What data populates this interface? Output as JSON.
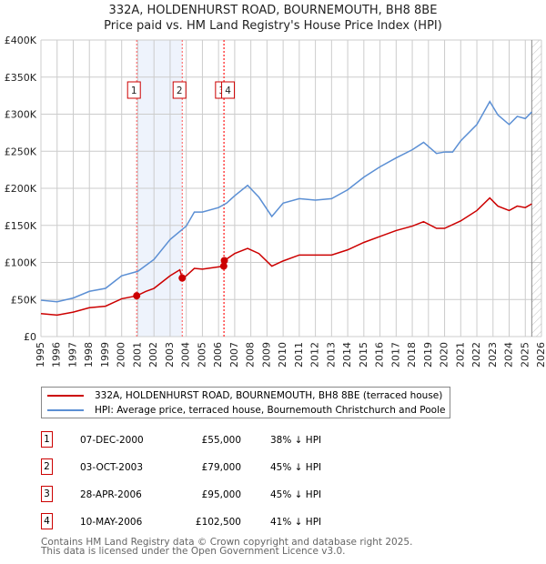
{
  "chart_data": {
    "type": "line",
    "title": "332A, HOLDENHURST ROAD, BOURNEMOUTH, BH8 8BE",
    "subtitle": "Price paid vs. HM Land Registry's House Price Index (HPI)",
    "xlim": [
      1995,
      2026
    ],
    "ylim": [
      0,
      400000
    ],
    "x_ticks": [
      "1995",
      "1996",
      "1997",
      "1998",
      "1999",
      "2000",
      "2001",
      "2002",
      "2003",
      "2004",
      "2005",
      "2006",
      "2007",
      "2008",
      "2009",
      "2010",
      "2011",
      "2012",
      "2013",
      "2014",
      "2015",
      "2016",
      "2017",
      "2018",
      "2019",
      "2020",
      "2021",
      "2022",
      "2023",
      "2024",
      "2025",
      "2026"
    ],
    "y_ticks": [
      {
        "v": 0,
        "label": "£0"
      },
      {
        "v": 50000,
        "label": "£50K"
      },
      {
        "v": 100000,
        "label": "£100K"
      },
      {
        "v": 150000,
        "label": "£150K"
      },
      {
        "v": 200000,
        "label": "£200K"
      },
      {
        "v": 250000,
        "label": "£250K"
      },
      {
        "v": 300000,
        "label": "£300K"
      },
      {
        "v": 350000,
        "label": "£350K"
      },
      {
        "v": 400000,
        "label": "£400K"
      }
    ],
    "grid": true,
    "forecast_hatch_from": 2025.4,
    "series": [
      {
        "name": "332A, HOLDENHURST ROAD, BOURNEMOUTH, BH8 8BE (terraced house)",
        "color": "#cc0000",
        "x": [
          1995,
          1996,
          1997,
          1998,
          1999,
          2000,
          2000.93,
          2001.5,
          2002,
          2003,
          2003.6,
          2003.75,
          2004,
          2004.5,
          2005,
          2006,
          2006.32,
          2006.36,
          2007,
          2007.8,
          2008.5,
          2009.3,
          2010,
          2011,
          2012,
          2013,
          2014,
          2015,
          2016,
          2017,
          2018,
          2018.7,
          2019.5,
          2020,
          2021,
          2022,
          2022.8,
          2023.3,
          2024,
          2024.5,
          2025,
          2025.4
        ],
        "y": [
          31000,
          29000,
          33000,
          39000,
          41000,
          51000,
          55000,
          61000,
          65000,
          82000,
          90000,
          79000,
          82000,
          92000,
          91000,
          94000,
          95000,
          102500,
          112000,
          119000,
          112000,
          95000,
          102000,
          110000,
          110000,
          110000,
          117000,
          127000,
          135000,
          143000,
          149000,
          155000,
          146000,
          146000,
          156000,
          170000,
          187000,
          176000,
          170000,
          176000,
          174000,
          179000
        ]
      },
      {
        "name": "HPI: Average price, terraced house, Bournemouth Christchurch and Poole",
        "color": "#5b8fd4",
        "x": [
          1995,
          1996,
          1997,
          1998,
          1999,
          2000,
          2001,
          2002,
          2003,
          2004,
          2004.5,
          2005,
          2006,
          2006.5,
          2007,
          2007.8,
          2008.5,
          2009.3,
          2010,
          2011,
          2012,
          2013,
          2014,
          2015,
          2016,
          2017,
          2018,
          2018.7,
          2019.5,
          2020,
          2020.5,
          2021,
          2022,
          2022.8,
          2023.3,
          2024,
          2024.5,
          2025,
          2025.4
        ],
        "y": [
          49000,
          47000,
          52000,
          61000,
          65000,
          82000,
          88000,
          104000,
          131000,
          149000,
          168000,
          168000,
          174000,
          180000,
          190000,
          204000,
          188000,
          162000,
          180000,
          186000,
          184000,
          186000,
          198000,
          215000,
          229000,
          241000,
          252000,
          262000,
          247000,
          249000,
          249000,
          264000,
          286000,
          317000,
          299000,
          286000,
          297000,
          294000,
          303000
        ]
      }
    ],
    "transactions": [
      {
        "num": "1",
        "x": 2000.93,
        "date": "07-DEC-2000",
        "price": "£55,000",
        "hpi": "38% ↓ HPI",
        "value": 55000
      },
      {
        "num": "2",
        "x": 2003.75,
        "date": "03-OCT-2003",
        "price": "£79,000",
        "hpi": "45% ↓ HPI",
        "value": 79000
      },
      {
        "num": "3",
        "x": 2006.32,
        "date": "28-APR-2006",
        "price": "£95,000",
        "hpi": "45% ↓ HPI",
        "value": 95000
      },
      {
        "num": "4",
        "x": 2006.36,
        "date": "10-MAY-2006",
        "price": "£102,500",
        "hpi": "41% ↓ HPI",
        "value": 102500
      }
    ],
    "shaded_range": [
      2000.93,
      2003.75
    ]
  },
  "footer": {
    "line1": "Contains HM Land Registry data © Crown copyright and database right 2025.",
    "line2": "This data is licensed under the Open Government Licence v3.0."
  }
}
